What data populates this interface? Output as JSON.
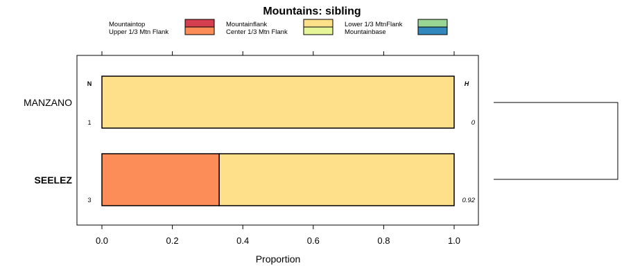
{
  "chart_data": {
    "type": "bar",
    "orientation": "horizontal",
    "stacked": true,
    "title": "Mountains: sibling",
    "xlabel": "Proportion",
    "ylabel": "",
    "xlim": [
      -0.07,
      1.07
    ],
    "x_ticks": [
      0.0,
      0.2,
      0.4,
      0.6,
      0.8,
      1.0
    ],
    "x_tick_labels": [
      "0.0",
      "0.2",
      "0.4",
      "0.6",
      "0.8",
      "1.0"
    ],
    "grid": false,
    "legend_position": "top",
    "legend": [
      {
        "name": "Mountaintop",
        "color": "#d53e4f"
      },
      {
        "name": "Upper 1/3 Mtn Flank",
        "color": "#fc8d59"
      },
      {
        "name": "Mountainflank",
        "color": "#fee08b"
      },
      {
        "name": "Center 1/3 Mtn Flank",
        "color": "#e6f598"
      },
      {
        "name": "Lower 1/3 MtnFlank",
        "color": "#99d594"
      },
      {
        "name": "Mountainbase",
        "color": "#3288bd"
      }
    ],
    "n_header": "N",
    "h_header": "H",
    "categories": [
      {
        "name": "MANZANO",
        "bold": false,
        "n": "1",
        "h": "0",
        "segments": [
          {
            "name": "Mountainflank",
            "value": 1.0
          }
        ]
      },
      {
        "name": "SEELEZ",
        "bold": true,
        "n": "3",
        "h": "0.92",
        "segments": [
          {
            "name": "Upper 1/3 Mtn Flank",
            "value": 0.333
          },
          {
            "name": "Mountainflank",
            "value": 0.667
          }
        ]
      }
    ]
  }
}
